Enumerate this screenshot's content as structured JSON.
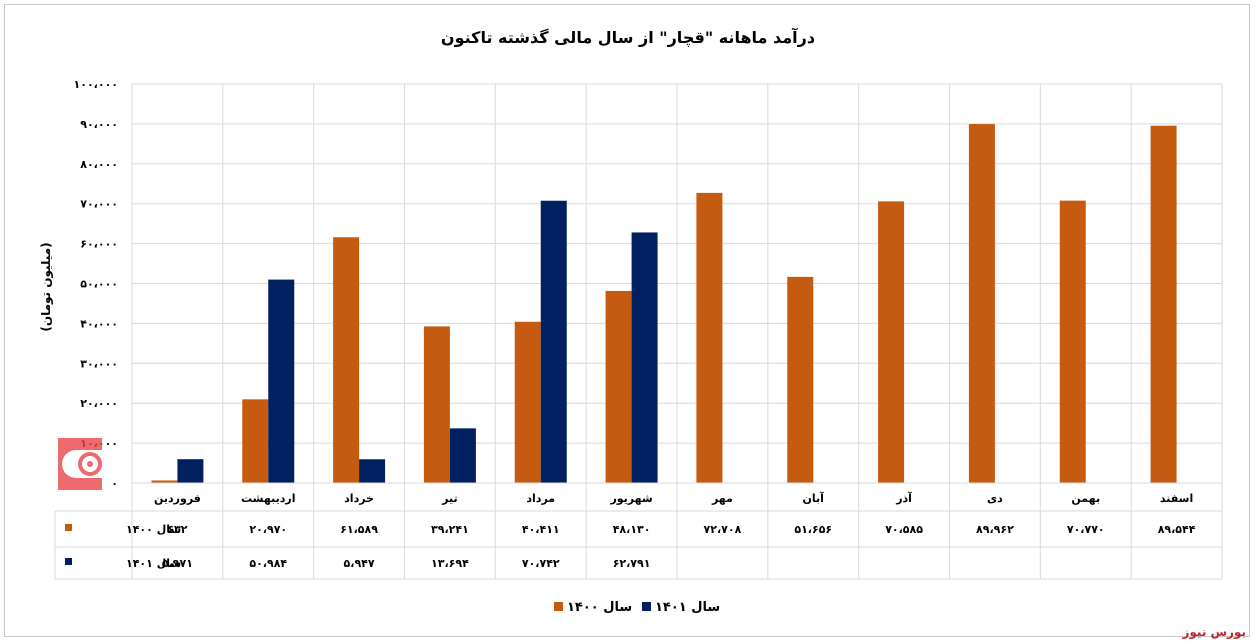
{
  "chart_data": {
    "type": "bar",
    "title": "درآمد ماهانه \"قچار\" از سال مالی گذشته تاکنون",
    "ylabel": "(میلیون تومان)",
    "ylim": [
      0,
      100000
    ],
    "yticks": [
      "۰",
      "۱۰،۰۰۰",
      "۲۰،۰۰۰",
      "۳۰،۰۰۰",
      "۴۰،۰۰۰",
      "۵۰،۰۰۰",
      "۶۰،۰۰۰",
      "۷۰،۰۰۰",
      "۸۰،۰۰۰",
      "۹۰،۰۰۰",
      "۱۰۰،۰۰۰"
    ],
    "categories": [
      "فروردین",
      "اردیبهشت",
      "خرداد",
      "تیر",
      "مرداد",
      "شهریور",
      "مهر",
      "آبان",
      "آذر",
      "دی",
      "بهمن",
      "اسفند"
    ],
    "series": [
      {
        "name": "سال ۱۴۰۰",
        "color": "#c55a11",
        "values": [
          632,
          20970,
          61589,
          39241,
          40411,
          48130,
          72708,
          51656,
          70585,
          89962,
          70770,
          89544
        ],
        "labels": [
          "۶۳۲",
          "۲۰،۹۷۰",
          "۶۱،۵۸۹",
          "۳۹،۲۴۱",
          "۴۰،۴۱۱",
          "۴۸،۱۳۰",
          "۷۲،۷۰۸",
          "۵۱،۶۵۶",
          "۷۰،۵۸۵",
          "۸۹،۹۶۲",
          "۷۰،۷۷۰",
          "۸۹،۵۴۴"
        ]
      },
      {
        "name": "سال ۱۴۰۱",
        "color": "#002060",
        "values": [
          5971,
          50984,
          5947,
          13694,
          70742,
          62791,
          null,
          null,
          null,
          null,
          null,
          null
        ],
        "labels": [
          "۵،۹۷۱",
          "۵۰،۹۸۴",
          "۵،۹۴۷",
          "۱۳،۶۹۴",
          "۷۰،۷۴۲",
          "۶۲،۷۹۱",
          "",
          "",
          "",
          "",
          "",
          ""
        ]
      }
    ],
    "grid": true,
    "legend": "bottom",
    "data_table": true
  },
  "footer": {
    "source": "بورس نیوز"
  }
}
